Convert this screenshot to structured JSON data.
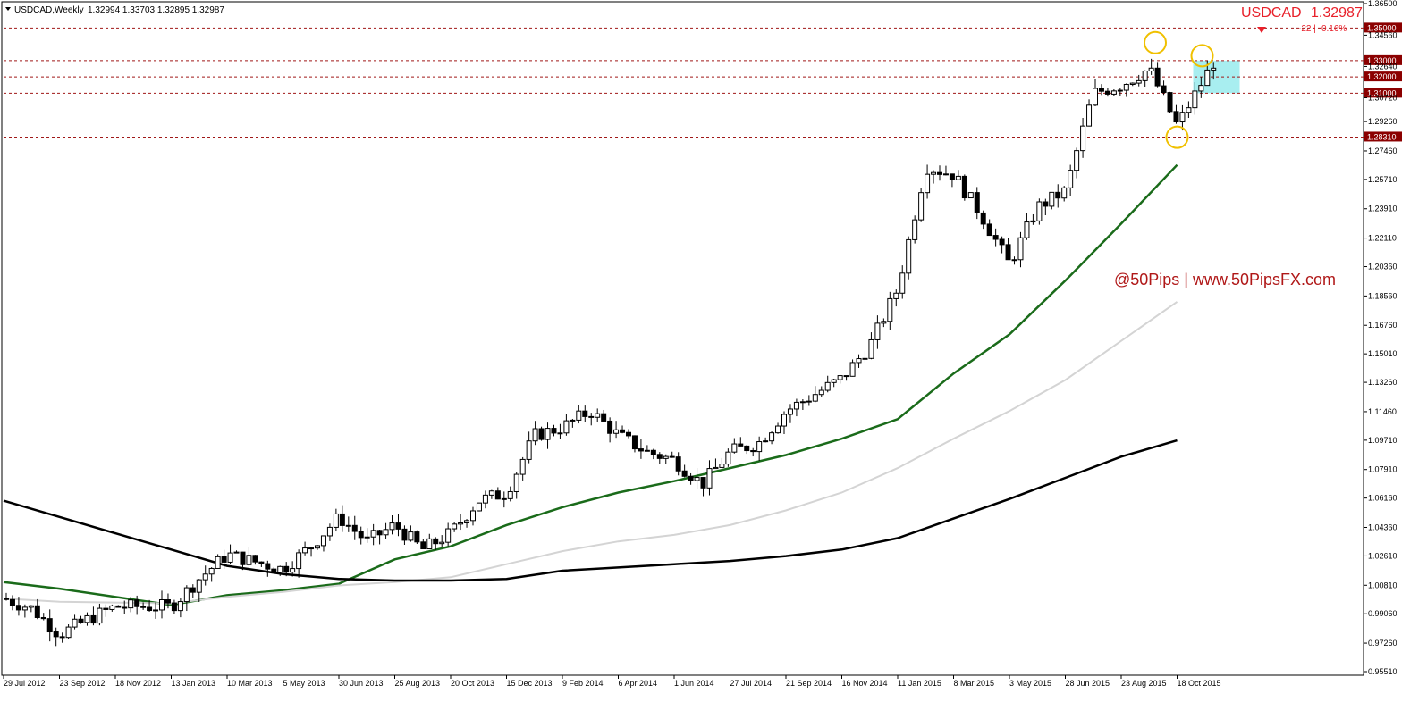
{
  "header": {
    "symbol_tf": "USDCAD,Weekly",
    "ohlc": "1.32994 1.33703 1.32895 1.32987"
  },
  "quote": {
    "symbol": "USDCAD",
    "price": "1.32987",
    "change": "-22 | -0.16%",
    "arrow": "down-triangle-icon",
    "color": "#e8202a"
  },
  "watermark": "@50Pips | www.50PipsFX.com",
  "colors": {
    "background": "#ffffff",
    "ema_green": "#1a6b1a",
    "ma_light_gray": "#d4d4d4",
    "ma_black": "#000000",
    "level_line": "#a01818",
    "level_label_bg": "#8b0000",
    "highlight_circle": "#f0c000",
    "zone_fill": "#a8eef0"
  },
  "chart_data": {
    "type": "candlestick",
    "symbol": "USDCAD",
    "timeframe": "Weekly",
    "title": "",
    "xlabel": "",
    "ylabel": "",
    "ylim": [
      0.9565,
      1.365
    ],
    "y_ticks": [
      "1.36500",
      "1.34560",
      "1.32640",
      "1.30720",
      "1.29260",
      "1.27460",
      "1.25710",
      "1.23910",
      "1.22110",
      "1.20360",
      "1.18560",
      "1.16760",
      "1.15010",
      "1.13260",
      "1.11460",
      "1.09710",
      "1.07910",
      "1.06160",
      "1.04360",
      "1.02610",
      "1.00810",
      "0.99060",
      "0.97260",
      "0.95510"
    ],
    "x_tick_labels": [
      "29 Jul 2012",
      "23 Sep 2012",
      "18 Nov 2012",
      "13 Jan 2013",
      "10 Mar 2013",
      "5 May 2013",
      "30 Jun 2013",
      "25 Aug 2013",
      "20 Oct 2013",
      "15 Dec 2013",
      "9 Feb 2014",
      "6 Apr 2014",
      "1 Jun 2014",
      "27 Jul 2014",
      "21 Sep 2014",
      "16 Nov 2014",
      "11 Jan 2015",
      "8 Mar 2015",
      "3 May 2015",
      "28 Jun 2015",
      "23 Aug 2015",
      "18 Oct 2015"
    ],
    "grid": false,
    "legend": "none",
    "close_path": [
      [
        "29 Jul 2012",
        1.0
      ],
      [
        "29 Jul 2012",
        0.994
      ],
      [
        "23 Sep 2012",
        0.978
      ],
      [
        "23 Sep 2012",
        0.987
      ],
      [
        "18 Nov 2012",
        0.995
      ],
      [
        "13 Jan 2013",
        0.995
      ],
      [
        "13 Jan 2013",
        1.012
      ],
      [
        "10 Mar 2013",
        1.027
      ],
      [
        "5 May 2013",
        1.018
      ],
      [
        "5 May 2013",
        1.032
      ],
      [
        "30 Jun 2013",
        1.05
      ],
      [
        "30 Jun 2013",
        1.035
      ],
      [
        "25 Aug 2013",
        1.045
      ],
      [
        "25 Aug 2013",
        1.03
      ],
      [
        "20 Oct 2013",
        1.04
      ],
      [
        "20 Oct 2013",
        1.06
      ],
      [
        "15 Dec 2013",
        1.065
      ],
      [
        "15 Dec 2013",
        1.1
      ],
      [
        "9 Feb 2014",
        1.105
      ],
      [
        "9 Feb 2014",
        1.115
      ],
      [
        "6 Apr 2014",
        1.1
      ],
      [
        "6 Apr 2014",
        1.09
      ],
      [
        "1 Jun 2014",
        1.085
      ],
      [
        "1 Jun 2014",
        1.07
      ],
      [
        "27 Jul 2014",
        1.09
      ],
      [
        "27 Jul 2014",
        1.095
      ],
      [
        "21 Sep 2014",
        1.115
      ],
      [
        "21 Sep 2014",
        1.125
      ],
      [
        "16 Nov 2014",
        1.135
      ],
      [
        "16 Nov 2014",
        1.155
      ],
      [
        "11 Jan 2015",
        1.19
      ],
      [
        "11 Jan 2015",
        1.265
      ],
      [
        "8 Mar 2015",
        1.26
      ],
      [
        "8 Mar 2015",
        1.235
      ],
      [
        "3 May 2015",
        1.205
      ],
      [
        "3 May 2015",
        1.24
      ],
      [
        "28 Jun 2015",
        1.25
      ],
      [
        "28 Jun 2015",
        1.31
      ],
      [
        "23 Aug 2015",
        1.315
      ],
      [
        "23 Aug 2015",
        1.325
      ],
      [
        "18 Oct 2015",
        1.29
      ],
      [
        "18 Oct 2015",
        1.31
      ],
      [
        "18 Oct 2015",
        1.3299
      ]
    ],
    "series": [
      {
        "name": "",
        "color": "#1a6b1a",
        "values": [
          [
            "29 Jul 2012",
            1.01
          ],
          [
            "23 Sep 2012",
            1.006
          ],
          [
            "13 Jan 2013",
            0.996
          ],
          [
            "10 Mar 2013",
            1.002
          ],
          [
            "5 May 2013",
            1.005
          ],
          [
            "30 Jun 2013",
            1.009
          ],
          [
            "25 Aug 2013",
            1.024
          ],
          [
            "20 Oct 2013",
            1.032
          ],
          [
            "15 Dec 2013",
            1.045
          ],
          [
            "9 Feb 2014",
            1.056
          ],
          [
            "6 Apr 2014",
            1.065
          ],
          [
            "1 Jun 2014",
            1.072
          ],
          [
            "27 Jul 2014",
            1.08
          ],
          [
            "21 Sep 2014",
            1.088
          ],
          [
            "16 Nov 2014",
            1.098
          ],
          [
            "11 Jan 2015",
            1.11
          ],
          [
            "8 Mar 2015",
            1.138
          ],
          [
            "3 May 2015",
            1.162
          ],
          [
            "28 Jun 2015",
            1.195
          ],
          [
            "23 Aug 2015",
            1.23
          ],
          [
            "18 Oct 2015",
            1.266
          ]
        ]
      },
      {
        "name": "",
        "color": "#d4d4d4",
        "values": [
          [
            "29 Jul 2012",
            1.0
          ],
          [
            "23 Sep 2012",
            0.998
          ],
          [
            "13 Jan 2013",
            0.997
          ],
          [
            "10 Mar 2013",
            1.001
          ],
          [
            "5 May 2013",
            1.004
          ],
          [
            "30 Jun 2013",
            1.008
          ],
          [
            "25 Aug 2013",
            1.01
          ],
          [
            "20 Oct 2013",
            1.013
          ],
          [
            "15 Dec 2013",
            1.021
          ],
          [
            "9 Feb 2014",
            1.029
          ],
          [
            "6 Apr 2014",
            1.035
          ],
          [
            "1 Jun 2014",
            1.039
          ],
          [
            "27 Jul 2014",
            1.045
          ],
          [
            "21 Sep 2014",
            1.054
          ],
          [
            "16 Nov 2014",
            1.065
          ],
          [
            "11 Jan 2015",
            1.08
          ],
          [
            "8 Mar 2015",
            1.098
          ],
          [
            "3 May 2015",
            1.115
          ],
          [
            "28 Jun 2015",
            1.134
          ],
          [
            "23 Aug 2015",
            1.158
          ],
          [
            "18 Oct 2015",
            1.182
          ]
        ]
      },
      {
        "name": "",
        "color": "#000000",
        "values": [
          [
            "29 Jul 2012",
            1.06
          ],
          [
            "23 Sep 2012",
            1.05
          ],
          [
            "18 Nov 2012",
            1.04
          ],
          [
            "13 Jan 2013",
            1.03
          ],
          [
            "10 Mar 2013",
            1.02
          ],
          [
            "5 May 2013",
            1.015
          ],
          [
            "30 Jun 2013",
            1.012
          ],
          [
            "25 Aug 2013",
            1.011
          ],
          [
            "20 Oct 2013",
            1.011
          ],
          [
            "15 Dec 2013",
            1.012
          ],
          [
            "9 Feb 2014",
            1.017
          ],
          [
            "6 Apr 2014",
            1.019
          ],
          [
            "1 Jun 2014",
            1.021
          ],
          [
            "27 Jul 2014",
            1.023
          ],
          [
            "21 Sep 2014",
            1.026
          ],
          [
            "16 Nov 2014",
            1.03
          ],
          [
            "11 Jan 2015",
            1.037
          ],
          [
            "8 Mar 2015",
            1.049
          ],
          [
            "3 May 2015",
            1.061
          ],
          [
            "28 Jun 2015",
            1.074
          ],
          [
            "23 Aug 2015",
            1.087
          ],
          [
            "18 Oct 2015",
            1.097
          ]
        ]
      }
    ],
    "levels": [
      {
        "price": 1.35,
        "label": "1.35000"
      },
      {
        "price": 1.33,
        "label": "1.33000"
      },
      {
        "price": 1.32,
        "label": "1.32000"
      },
      {
        "price": 1.31,
        "label": "1.31000"
      },
      {
        "price": 1.2831,
        "label": "1.28310"
      }
    ],
    "zone": {
      "from": "18 Oct 2015",
      "price_top": 1.33,
      "price_bottom": 1.31
    },
    "highlights": [
      {
        "date": "23 Aug 2015",
        "price": 1.341
      },
      {
        "date": "18 Oct 2015",
        "price": 1.283
      },
      {
        "date": "18 Oct 2015",
        "price": 1.333
      }
    ]
  }
}
